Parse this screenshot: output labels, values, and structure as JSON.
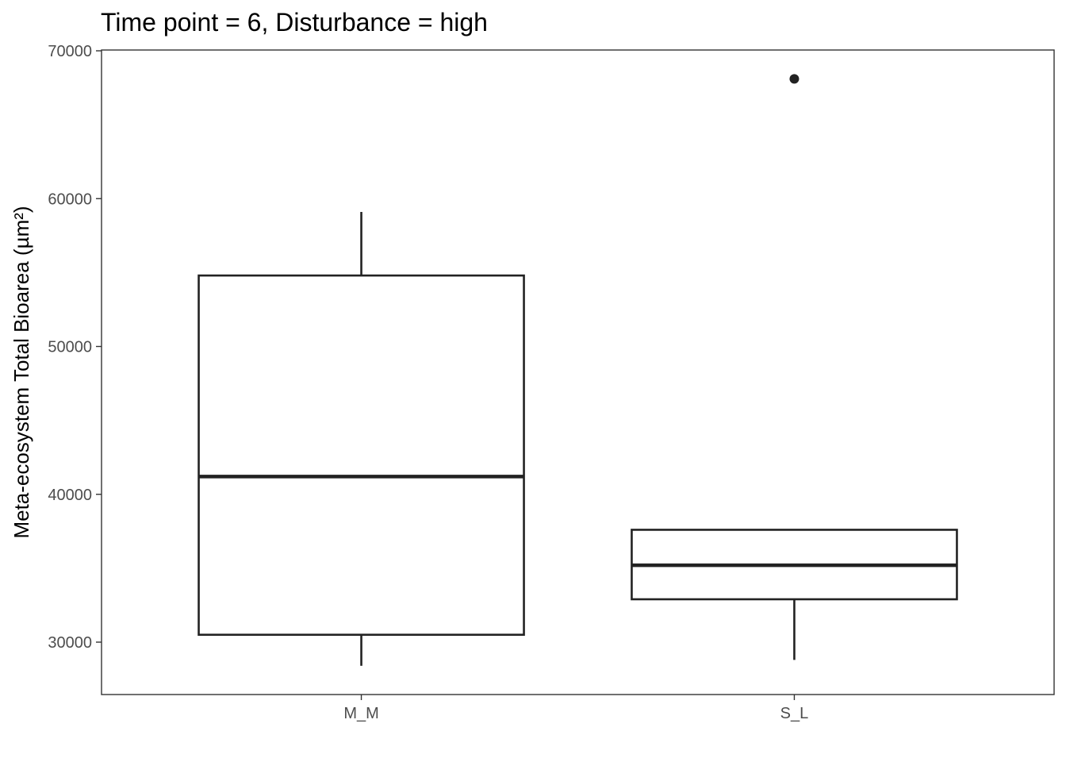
{
  "chart_data": {
    "type": "boxplot",
    "title": "Time point = 6, Disturbance = high",
    "xlabel": "",
    "ylabel": "Meta-ecosystem Total Bioarea (µm²)",
    "ylim": [
      26500,
      70000
    ],
    "yticks": [
      30000,
      40000,
      50000,
      60000,
      70000
    ],
    "ytick_labels": [
      "30000",
      "40000",
      "50000",
      "60000",
      "70000"
    ],
    "categories": [
      "M_M",
      "S_L"
    ],
    "boxes": [
      {
        "category": "M_M",
        "whisker_low": 28400,
        "q1": 30500,
        "median": 41200,
        "q3": 54800,
        "whisker_high": 59100,
        "outliers": []
      },
      {
        "category": "S_L",
        "whisker_low": 28800,
        "q1": 32900,
        "median": 35200,
        "q3": 37600,
        "whisker_high": 37600,
        "outliers": [
          68100
        ]
      }
    ],
    "grid": false,
    "legend": "none",
    "colors": {
      "box_stroke": "#222222",
      "box_fill": "#ffffff",
      "axis_text": "#4d4d4d"
    }
  }
}
